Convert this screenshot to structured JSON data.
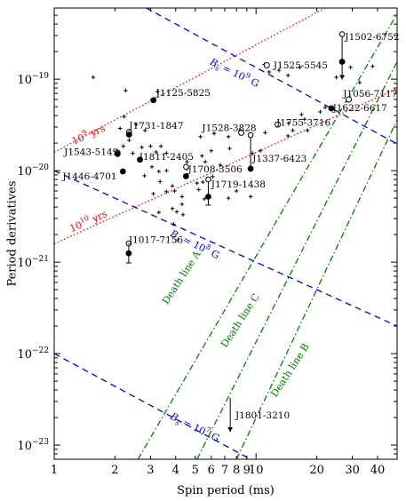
{
  "chart_data": {
    "type": "scatter",
    "xlabel": "Spin period (ms)",
    "ylabel": "Period derivatives",
    "xscale": "log",
    "yscale": "log",
    "xlim": [
      1,
      50
    ],
    "ylim": [
      7e-24,
      6e-19
    ],
    "x_ticks": [
      {
        "v": 1,
        "label": "1"
      },
      {
        "v": 2,
        "label": "2"
      },
      {
        "v": 3,
        "label": "3"
      },
      {
        "v": 4,
        "label": "4"
      },
      {
        "v": 5,
        "label": "5"
      },
      {
        "v": 6,
        "label": "6"
      },
      {
        "v": 7,
        "label": "7"
      },
      {
        "v": 8,
        "label": "8"
      },
      {
        "v": 9,
        "label": "9"
      },
      {
        "v": 10,
        "label": "10"
      },
      {
        "v": 20,
        "label": "20"
      },
      {
        "v": 30,
        "label": "30"
      },
      {
        "v": 40,
        "label": "40"
      }
    ],
    "y_ticks": [
      {
        "v": 1e-23,
        "mant": "10",
        "exp": "−23"
      },
      {
        "v": 1e-22,
        "mant": "10",
        "exp": "−22"
      },
      {
        "v": 1e-21,
        "mant": "10",
        "exp": "−21"
      },
      {
        "v": 1e-20,
        "mant": "10",
        "exp": "−20"
      },
      {
        "v": 1e-19,
        "mant": "10",
        "exp": "−19"
      }
    ],
    "reference_lines": [
      {
        "kind": "field",
        "points": [
          [
            2.86,
            6e-19
          ],
          [
            50,
            1.96e-20
          ]
        ],
        "color": "#0000ff",
        "style": "dashed",
        "label_prefix": "B",
        "label_sub": "s",
        "label_mid": " = 10",
        "label_exp": "9",
        "label_unit": " G",
        "label_at": [
          7.7,
          1.09e-19
        ],
        "label_angle": 26
      },
      {
        "kind": "field",
        "points": [
          [
            1,
            1e-20
          ],
          [
            50,
            2e-22
          ]
        ],
        "color": "#0000ff",
        "style": "dashed",
        "label_prefix": "B",
        "label_sub": "s",
        "label_mid": " = 10",
        "label_exp": "8",
        "label_unit": " G",
        "label_at": [
          4.9,
          1.45e-21
        ],
        "label_angle": 26
      },
      {
        "kind": "field",
        "points": [
          [
            1,
            1e-22
          ],
          [
            9.4,
            7e-24
          ]
        ],
        "color": "#0000ff",
        "style": "dashed",
        "label_prefix": "B",
        "label_sub": "s",
        "label_mid": " = 10",
        "label_exp": "7",
        "label_unit": " G",
        "label_at": [
          4.9,
          1.45e-23
        ],
        "label_angle": 26
      },
      {
        "kind": "age",
        "points": [
          [
            1,
            1.59e-20
          ],
          [
            22,
            6e-19
          ]
        ],
        "color": "#ff0000",
        "style": "dotted",
        "label": "yrs",
        "label_mant": "10",
        "label_exp": "9",
        "label_at": [
          1.5,
          2.3e-20
        ],
        "label_angle": -24
      },
      {
        "kind": "age",
        "points": [
          [
            1,
            1.59e-21
          ],
          [
            50,
            7.9e-20
          ]
        ],
        "color": "#ff0000",
        "style": "dotted",
        "label": "yrs",
        "label_mant": "10",
        "label_exp": "10",
        "label_at": [
          1.5,
          2.6e-21
        ],
        "label_angle": -24
      },
      {
        "kind": "death",
        "points": [
          [
            2.6,
            7e-24
          ],
          [
            50,
            5.2e-19
          ]
        ],
        "color": "#008000",
        "style": "dashdot",
        "label": "Death line A",
        "label_at": [
          4.4,
          6.5e-22
        ],
        "label_angle": -57
      },
      {
        "kind": "death",
        "points": [
          [
            5.1,
            7e-24
          ],
          [
            50,
            1.55e-19
          ]
        ],
        "color": "#008000",
        "style": "dashdot",
        "label": "Death line C",
        "label_at": [
          8.6,
          2.2e-22
        ],
        "label_angle": -57
      },
      {
        "kind": "death",
        "points": [
          [
            8.0,
            7e-24
          ],
          [
            50,
            3.6e-20
          ]
        ],
        "color": "#008000",
        "style": "dashdot",
        "label": "Death line B",
        "label_at": [
          15.2,
          6.3e-23
        ],
        "label_angle": -57
      }
    ],
    "background_pulsars": [
      [
        1.56,
        1.05e-19
      ],
      [
        2.26,
        7.5e-20
      ],
      [
        2.22,
        3.9e-20
      ],
      [
        2.12,
        2.9e-20
      ],
      [
        2.55,
        3.2e-20
      ],
      [
        2.82,
        2.75e-20
      ],
      [
        2.35,
        2.15e-20
      ],
      [
        2.2,
        1.85e-20
      ],
      [
        2.72,
        1.8e-20
      ],
      [
        3.0,
        1.85e-20
      ],
      [
        3.38,
        1.85e-20
      ],
      [
        3.2,
        1.6e-20
      ],
      [
        3.6,
        1.55e-20
      ],
      [
        2.45,
        1.55e-20
      ],
      [
        3.05,
        1.1e-20
      ],
      [
        3.6,
        1e-20
      ],
      [
        3.3,
        9.8e-21
      ],
      [
        2.8,
        8.8e-21
      ],
      [
        3.35,
        7.6e-21
      ],
      [
        3.85,
        6.8e-21
      ],
      [
        3.95,
        6e-21
      ],
      [
        3.6,
        5.9e-21
      ],
      [
        3.1,
        5.6e-21
      ],
      [
        4.3,
        5.2e-21
      ],
      [
        4.3,
        4.3e-21
      ],
      [
        3.85,
        3.85e-21
      ],
      [
        4.05,
        3.55e-21
      ],
      [
        4.35,
        3.3e-21
      ],
      [
        3.3,
        3.5e-21
      ],
      [
        3.9,
        2.6e-21
      ],
      [
        4.55,
        1.25e-20
      ],
      [
        4.55,
        1.05e-20
      ],
      [
        5.4,
        1.45e-20
      ],
      [
        5.6,
        1.25e-20
      ],
      [
        5.3,
        2.35e-20
      ],
      [
        6.2,
        2.55e-20
      ],
      [
        7.3,
        2.35e-20
      ],
      [
        8.35,
        2.75e-20
      ],
      [
        6.0,
        1.65e-20
      ],
      [
        5.45,
        7.5e-21
      ],
      [
        5.1,
        7.3e-21
      ],
      [
        5.2,
        6.2e-21
      ],
      [
        5.55,
        4.9e-21
      ],
      [
        6.1,
        8.6e-21
      ],
      [
        6.65,
        1.15e-20
      ],
      [
        7.4,
        1.75e-20
      ],
      [
        9.6,
        1.55e-20
      ],
      [
        10.5,
        1.65e-20
      ],
      [
        11.1,
        2.6e-20
      ],
      [
        8.0,
        6e-21
      ],
      [
        7.3,
        5e-21
      ],
      [
        9.4,
        5.2e-21
      ],
      [
        14.5,
        3.3e-20
      ],
      [
        15.2,
        2.75e-20
      ],
      [
        18.0,
        2.75e-20
      ],
      [
        17.4,
        3.65e-20
      ],
      [
        14.4,
        2.4e-20
      ],
      [
        16.8,
        4.1e-20
      ],
      [
        20.8,
        4.4e-20
      ],
      [
        22.0,
        4.9e-20
      ],
      [
        11.6,
        1.2e-19
      ],
      [
        11.0,
        1.45e-19
      ],
      [
        13.0,
        1.25e-19
      ],
      [
        16.5,
        1.35e-19
      ],
      [
        14.4,
        1.1e-19
      ],
      [
        29.4,
        1.35e-19
      ],
      [
        37.8,
        1.38e-19
      ],
      [
        25.0,
        1.05e-19
      ],
      [
        32.6,
        9.2e-20
      ],
      [
        3.25,
        7.3e-20
      ]
    ],
    "new_pulsars": [
      {
        "name": "J1502-6752",
        "p": 26.7,
        "pdot": 1.55e-19,
        "pdot_upper": 3.1e-19,
        "symbol": "filled",
        "upper_limit": true,
        "arrow_len": 20,
        "label_at": [
          27.6,
          2.95e-19
        ]
      },
      {
        "name": "J1525-5545",
        "p": 11.3,
        "pdot": 1.42e-19,
        "symbol": "open",
        "label_at": [
          12.2,
          1.43e-19
        ]
      },
      {
        "name": "J1125-5825",
        "p": 3.1,
        "pdot": 5.9e-20,
        "symbol": "filled",
        "label_at": [
          3.2,
          7.2e-20
        ]
      },
      {
        "name": "J1056-7117",
        "p": 28.8,
        "pdot": 6e-20,
        "symbol": "open",
        "label_at": [
          27.0,
          7e-20
        ]
      },
      {
        "name": "J1622-6617",
        "p": 23.6,
        "pdot": 4.8e-20,
        "symbol": "filled",
        "label_at": [
          24.0,
          4.9e-20
        ]
      },
      {
        "name": "J1755-3716",
        "p": 12.8,
        "pdot": 3.2e-20,
        "symbol": "open",
        "label_at": [
          12.6,
          3.4e-20
        ]
      },
      {
        "name": "J1731-1847",
        "p": 2.35,
        "pdot": 2.48e-20,
        "symbol": "filled",
        "label_at": [
          2.35,
          3.15e-20
        ]
      },
      {
        "name": "J1528-3828",
        "p": 8.45,
        "pdot": 2.6e-20,
        "symbol": "open",
        "label_at": [
          5.4,
          2.95e-20
        ]
      },
      {
        "name": "J1543-5149",
        "p": 2.06,
        "pdot": 1.52e-20,
        "symbol": "filled",
        "label_at": [
          1.12,
          1.62e-20
        ]
      },
      {
        "name": "J1811-2405",
        "p": 2.66,
        "pdot": 1.32e-20,
        "symbol": "filled",
        "label_at": [
          2.64,
          1.44e-20
        ]
      },
      {
        "name": "J1337-6423",
        "p": 9.4,
        "pdot": 1.05e-20,
        "pdot_upper": 2.45e-20,
        "symbol": "filled",
        "label_at": [
          9.6,
          1.37e-20
        ]
      },
      {
        "name": "J1446-4701",
        "p": 2.19,
        "pdot": 9.8e-21,
        "symbol": "filled",
        "label_at": [
          1.1,
          8.8e-21
        ]
      },
      {
        "name": "J1708-3506",
        "p": 4.5,
        "pdot": 8.7e-21,
        "symbol": "filled",
        "label_at": [
          4.6,
          1.05e-20
        ]
      },
      {
        "name": "J1719-1438",
        "p": 5.8,
        "pdot": 5.2e-21,
        "pdot_upper": 8e-21,
        "pdot_lower": 4.2e-21,
        "symbol": "filled",
        "label_at": [
          6.0,
          7.2e-21
        ]
      },
      {
        "name": "J1017-7156",
        "p": 2.34,
        "pdot": 1.25e-21,
        "pdot_upper": 1.6e-21,
        "pdot_lower": 9.8e-22,
        "symbol": "filled",
        "label_at": [
          2.34,
          1.78e-21
        ]
      },
      {
        "name": "J1801-3210",
        "p": 7.45,
        "pdot": 1.4e-23,
        "pdot_upper": 3.3e-23,
        "symbol": "none",
        "upper_limit": true,
        "arrow_len": 0,
        "label_at": [
          7.9,
          2.15e-23
        ]
      }
    ],
    "open_markers": [
      [
        26.7,
        3.1e-19
      ],
      [
        9.4,
        2.45e-20
      ],
      [
        5.8,
        8e-21
      ],
      [
        2.34,
        1.6e-21
      ],
      [
        4.5,
        1.1e-20
      ],
      [
        2.35,
        2.65e-20
      ],
      [
        2.06,
        1.58e-20
      ]
    ]
  }
}
